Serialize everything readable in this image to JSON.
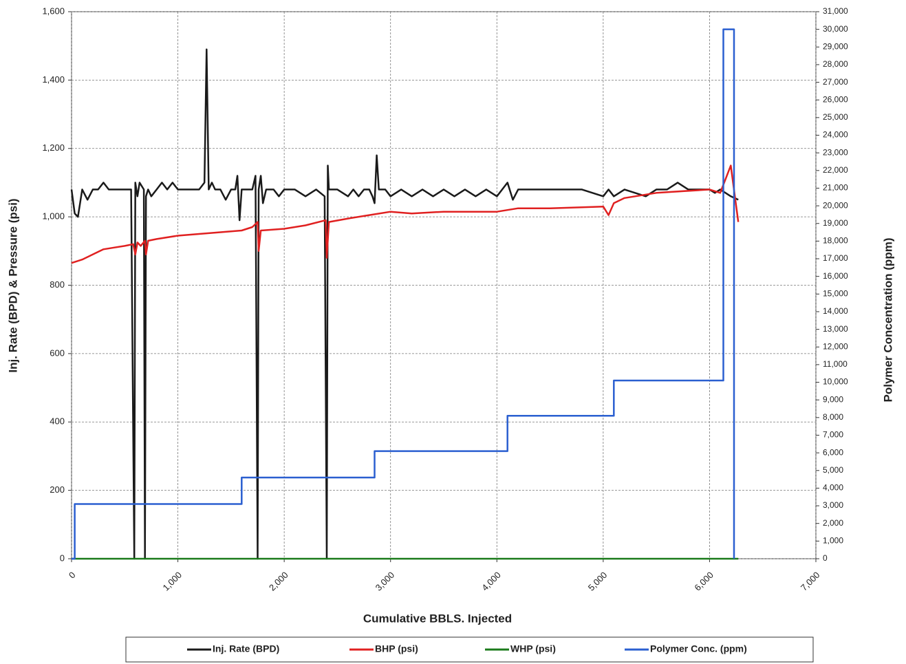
{
  "chart_data": {
    "type": "line",
    "x_label": "Cumulative BBLS. Injected",
    "y_label": "Inj. Rate (BPD) & Pressure (psi)",
    "y2_label": "Polymer Concentration (ppm)",
    "xlim": [
      0,
      7000
    ],
    "xticks": [
      0,
      {
        "value": 1000,
        "label": "1,000"
      },
      {
        "value": 2000,
        "label": "2,000"
      },
      {
        "value": 3000,
        "label": "3,000"
      },
      {
        "value": 4000,
        "label": "4,000"
      },
      {
        "value": 5000,
        "label": "5,000"
      },
      {
        "value": 6000,
        "label": "6,000"
      },
      {
        "value": 7000,
        "label": "7,000"
      }
    ],
    "ylim": [
      0,
      1600
    ],
    "yticks": [
      0,
      200,
      400,
      600,
      800,
      {
        "value": 1000,
        "label": "1,000"
      },
      {
        "value": 1200,
        "label": "1,200"
      },
      {
        "value": 1400,
        "label": "1,400"
      },
      {
        "value": 1600,
        "label": "1,600"
      }
    ],
    "y2lim": [
      0,
      31000
    ],
    "y2ticks": [
      0,
      {
        "value": 1000,
        "label": "1,000"
      },
      {
        "value": 2000,
        "label": "2,000"
      },
      {
        "value": 3000,
        "label": "3,000"
      },
      {
        "value": 4000,
        "label": "4,000"
      },
      {
        "value": 5000,
        "label": "5,000"
      },
      {
        "value": 6000,
        "label": "6,000"
      },
      {
        "value": 7000,
        "label": "7,000"
      },
      {
        "value": 8000,
        "label": "8,000"
      },
      {
        "value": 9000,
        "label": "9,000"
      },
      {
        "value": 10000,
        "label": "10,000"
      },
      {
        "value": 11000,
        "label": "11,000"
      },
      {
        "value": 12000,
        "label": "12,000"
      },
      {
        "value": 13000,
        "label": "13,000"
      },
      {
        "value": 14000,
        "label": "14,000"
      },
      {
        "value": 15000,
        "label": "15,000"
      },
      {
        "value": 16000,
        "label": "16,000"
      },
      {
        "value": 17000,
        "label": "17,000"
      },
      {
        "value": 18000,
        "label": "18,000"
      },
      {
        "value": 19000,
        "label": "19,000"
      },
      {
        "value": 20000,
        "label": "20,000"
      },
      {
        "value": 21000,
        "label": "21,000"
      },
      {
        "value": 22000,
        "label": "22,000"
      },
      {
        "value": 23000,
        "label": "23,000"
      },
      {
        "value": 24000,
        "label": "24,000"
      },
      {
        "value": 25000,
        "label": "25,000"
      },
      {
        "value": 26000,
        "label": "26,000"
      },
      {
        "value": 27000,
        "label": "27,000"
      },
      {
        "value": 28000,
        "label": "28,000"
      },
      {
        "value": 29000,
        "label": "29,000"
      },
      {
        "value": 30000,
        "label": "30,000"
      },
      {
        "value": 31000,
        "label": "31,000"
      }
    ],
    "grid": true,
    "legend": "bottom",
    "series": [
      {
        "name": "Inj. Rate (BPD)",
        "color": "#1a1a1a",
        "x": [
          0,
          30,
          60,
          100,
          150,
          200,
          250,
          300,
          350,
          400,
          450,
          500,
          560,
          590,
          600,
          620,
          640,
          680,
          690,
          700,
          720,
          750,
          800,
          850,
          900,
          950,
          1000,
          1050,
          1100,
          1150,
          1200,
          1250,
          1270,
          1290,
          1320,
          1350,
          1400,
          1450,
          1500,
          1540,
          1560,
          1580,
          1600,
          1650,
          1700,
          1730,
          1750,
          1760,
          1780,
          1800,
          1830,
          1900,
          1950,
          2000,
          2100,
          2200,
          2300,
          2380,
          2400,
          2410,
          2420,
          2450,
          2500,
          2600,
          2650,
          2700,
          2750,
          2800,
          2830,
          2850,
          2870,
          2890,
          2950,
          3000,
          3100,
          3200,
          3300,
          3400,
          3500,
          3600,
          3700,
          3800,
          3900,
          4000,
          4050,
          4100,
          4150,
          4200,
          4400,
          4600,
          4800,
          5000,
          5050,
          5100,
          5200,
          5400,
          5500,
          5600,
          5700,
          5800,
          5900,
          6000,
          6050,
          6100,
          6150,
          6200,
          6270
        ],
        "values": [
          1080,
          1010,
          1000,
          1080,
          1050,
          1080,
          1080,
          1100,
          1080,
          1080,
          1080,
          1080,
          1080,
          0,
          1100,
          1060,
          1100,
          1080,
          0,
          1060,
          1080,
          1060,
          1080,
          1100,
          1080,
          1100,
          1080,
          1080,
          1080,
          1080,
          1080,
          1100,
          1490,
          1080,
          1100,
          1080,
          1080,
          1050,
          1080,
          1080,
          1120,
          990,
          1080,
          1080,
          1080,
          1120,
          0,
          1080,
          1120,
          1040,
          1080,
          1080,
          1060,
          1080,
          1080,
          1060,
          1080,
          1060,
          0,
          1150,
          1080,
          1080,
          1080,
          1060,
          1080,
          1060,
          1080,
          1080,
          1060,
          1040,
          1180,
          1080,
          1080,
          1060,
          1080,
          1060,
          1080,
          1060,
          1080,
          1060,
          1080,
          1060,
          1080,
          1060,
          1080,
          1100,
          1050,
          1080,
          1080,
          1080,
          1080,
          1060,
          1080,
          1060,
          1080,
          1060,
          1080,
          1080,
          1100,
          1080,
          1080,
          1080,
          1070,
          1080,
          1070,
          1060,
          1050
        ]
      },
      {
        "name": "BHP (psi)",
        "color": "#e02020",
        "x": [
          0,
          100,
          200,
          300,
          400,
          500,
          580,
          600,
          620,
          650,
          690,
          700,
          720,
          800,
          1000,
          1200,
          1400,
          1600,
          1700,
          1750,
          1760,
          1780,
          2000,
          2200,
          2390,
          2400,
          2420,
          2600,
          2800,
          3000,
          3200,
          3500,
          4000,
          4200,
          4500,
          5000,
          5050,
          5100,
          5200,
          5500,
          6000,
          6100,
          6150,
          6200,
          6270
        ],
        "values": [
          865,
          875,
          890,
          905,
          910,
          915,
          920,
          890,
          925,
          915,
          930,
          890,
          930,
          935,
          945,
          950,
          955,
          960,
          970,
          985,
          900,
          960,
          965,
          975,
          990,
          880,
          985,
          995,
          1005,
          1015,
          1010,
          1015,
          1015,
          1025,
          1025,
          1030,
          1005,
          1040,
          1055,
          1070,
          1080,
          1070,
          1110,
          1150,
          985
        ]
      },
      {
        "name": "WHP (psi)",
        "color": "#1a7a1a",
        "x": [
          0,
          6270
        ],
        "values": [
          0,
          0
        ]
      },
      {
        "name": "Polymer Conc. (ppm)",
        "color": "#2a5fd0",
        "axis": "y2",
        "x": [
          0,
          30,
          30,
          1600,
          1600,
          2850,
          2850,
          4100,
          4100,
          5100,
          5100,
          6130,
          6130,
          6230,
          6230
        ],
        "values": [
          0,
          0,
          3100,
          3100,
          4600,
          4600,
          6100,
          6100,
          8100,
          8100,
          10100,
          10100,
          30000,
          30000,
          0
        ]
      }
    ]
  }
}
